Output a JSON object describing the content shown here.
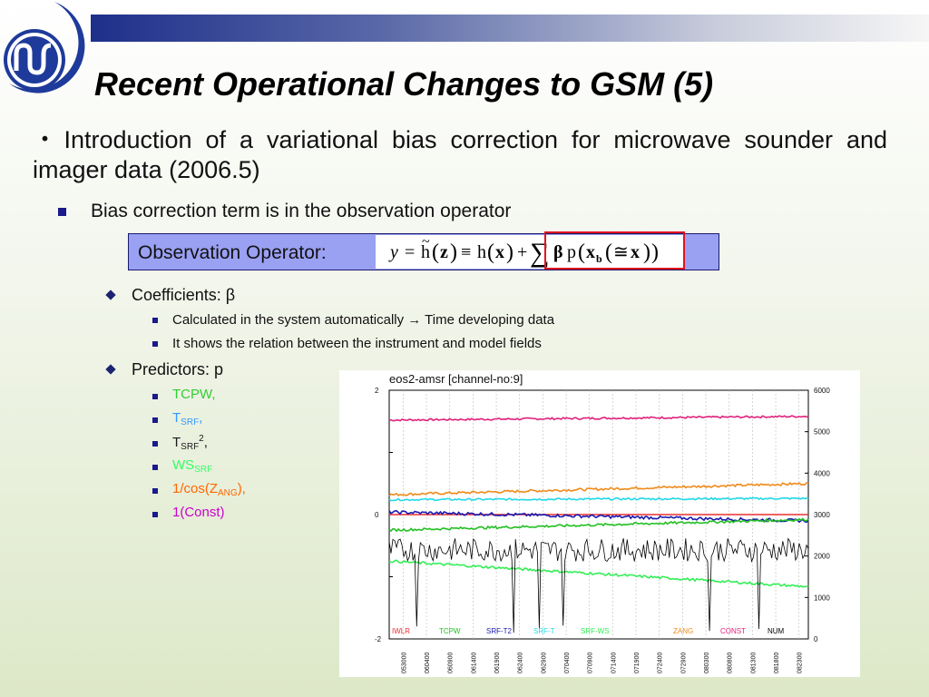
{
  "slide": {
    "title": "Recent Operational Changes to GSM (5)",
    "intro": "・Introduction of a variational bias correction for microwave sounder and imager data (2006.5)",
    "bullet": "Bias correction term is in the observation operator",
    "observation_operator": {
      "label": "Observation Operator:"
    },
    "coefficients": {
      "label": "Coefficients: β",
      "items": [
        "Calculated in the system automatically → Time developing data",
        "It shows the relation between the instrument and model fields"
      ]
    },
    "predictors": {
      "label": "Predictors: p",
      "items": [
        {
          "text": "TCPW,",
          "color": "#33cc33"
        },
        {
          "base": "T",
          "sub": "SRF",
          "tail": ",",
          "color": "#3399ff"
        },
        {
          "base": "T",
          "sub": "SRF",
          "sup": "2",
          "tail": ",",
          "color": "#1a1a1a"
        },
        {
          "base": "WS",
          "sub": "SRF",
          "tail": "",
          "color": "#33ff66"
        },
        {
          "base": "1/cos(Z",
          "sub": "ANG",
          "tail": "),",
          "color": "#ff6600"
        },
        {
          "text": "1(Const)",
          "color": "#cc00cc"
        }
      ]
    }
  },
  "chart_data": {
    "type": "line",
    "title": "eos2-amsr [channel-no:9]",
    "left_axis": {
      "ticks": [
        "2",
        "0",
        "-2"
      ],
      "ylim": [
        -2,
        2
      ]
    },
    "right_axis": {
      "ticks": [
        "6000",
        "5000",
        "4000",
        "3000",
        "2000",
        "1000",
        "0"
      ],
      "ylim": [
        0,
        6000
      ]
    },
    "x": [
      "053000",
      "060400",
      "060900",
      "061400",
      "061900",
      "062400",
      "062900",
      "070400",
      "070900",
      "071400",
      "071900",
      "072400",
      "072900",
      "080300",
      "080800",
      "081300",
      "081800",
      "082300"
    ],
    "legend": [
      {
        "name": "IWLR",
        "color": "#e83030"
      },
      {
        "name": "TCPW",
        "color": "#22c022"
      },
      {
        "name": "SRF-T2",
        "color": "#1a1ab0"
      },
      {
        "name": "SRF-T",
        "color": "#22d8e8"
      },
      {
        "name": "SRF-WS",
        "color": "#33ee55"
      },
      {
        "name": "ZANG",
        "color": "#f08a1a"
      },
      {
        "name": "CONST",
        "color": "#e0207a"
      },
      {
        "name": "NUM",
        "color": "#000000"
      }
    ],
    "series": [
      {
        "name": "CONST",
        "axis": "left",
        "start": 1.52,
        "end": 1.58,
        "noise": 0.015
      },
      {
        "name": "ZANG",
        "axis": "left",
        "start": 0.32,
        "end": 0.5,
        "noise": 0.02
      },
      {
        "name": "SRF-T",
        "axis": "left",
        "start": 0.24,
        "end": 0.26,
        "noise": 0.015
      },
      {
        "name": "IWLR",
        "axis": "left",
        "start": 0.0,
        "end": 0.0,
        "noise": 0.0
      },
      {
        "name": "SRF-T2",
        "axis": "left",
        "start": 0.04,
        "end": -0.1,
        "noise": 0.025
      },
      {
        "name": "TCPW",
        "axis": "left",
        "start": -0.25,
        "end": -0.08,
        "noise": 0.02
      },
      {
        "name": "SRF-WS",
        "axis": "right",
        "start": 1880,
        "end": 1260,
        "noise": 30
      },
      {
        "name": "NUM",
        "axis": "right",
        "start": 2150,
        "end": 2150,
        "noise": 280
      }
    ]
  }
}
